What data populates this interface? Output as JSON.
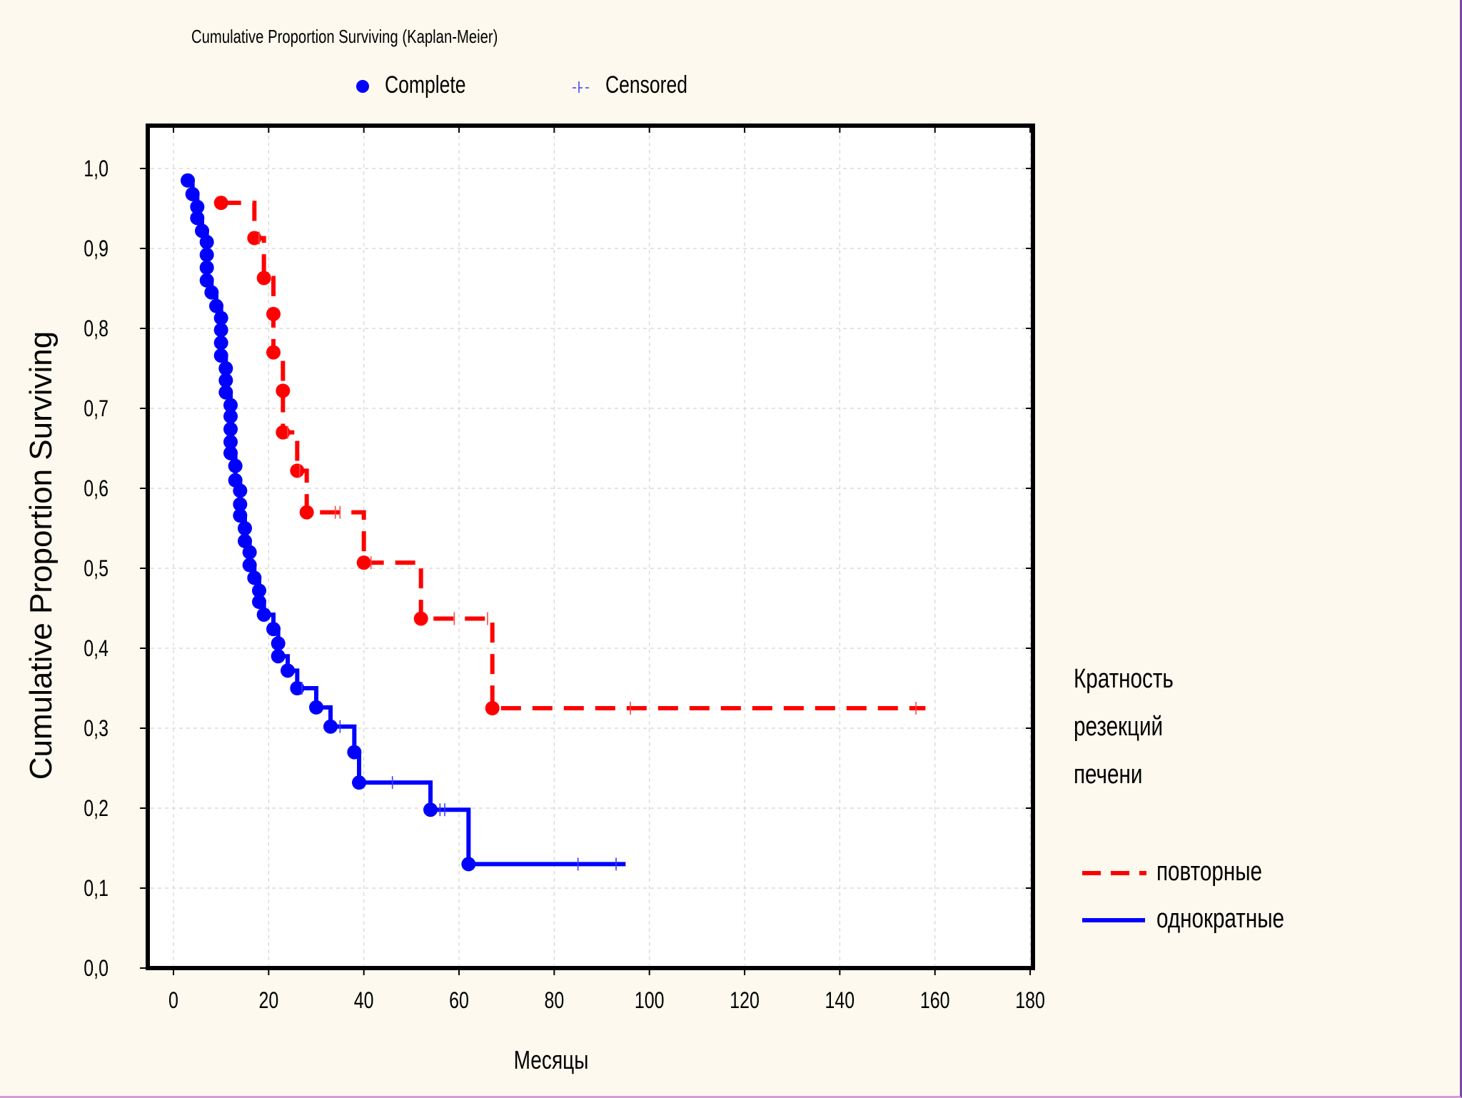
{
  "header": {
    "title": "Cumulative Proportion Surviving (Kaplan-Meier)",
    "complete_label": "Complete",
    "censored_label": "Censored"
  },
  "group_legend": {
    "title_lines": [
      "Кратность",
      "резекций",
      "печени"
    ],
    "items": [
      {
        "label": "повторные",
        "color": "#ff0000",
        "style": "dashed"
      },
      {
        "label": "однократные",
        "color": "#0000ff",
        "style": "solid"
      }
    ]
  },
  "chart_data": {
    "type": "line",
    "subtype": "kaplan-meier step",
    "title": "Cumulative Proportion Surviving (Kaplan-Meier)",
    "xlabel": "Месяцы",
    "ylabel": "Cumulative Proportion Surviving",
    "xlim": [
      -5,
      180
    ],
    "ylim": [
      0,
      1.05
    ],
    "x_ticks": [
      "0",
      "20",
      "40",
      "60",
      "80",
      "100",
      "120",
      "140",
      "160",
      "180"
    ],
    "y_ticks": [
      "0,0",
      "0,1",
      "0,2",
      "0,3",
      "0,4",
      "0,5",
      "0,6",
      "0,7",
      "0,8",
      "0,9",
      "1,0"
    ],
    "grid": true,
    "series": [
      {
        "name": "повторные",
        "color": "#ff0000",
        "style": "dashed",
        "events": [
          {
            "x": 10,
            "y": 0.957
          },
          {
            "x": 17,
            "y": 0.913
          },
          {
            "x": 19,
            "y": 0.863
          },
          {
            "x": 21,
            "y": 0.818
          },
          {
            "x": 21,
            "y": 0.77
          },
          {
            "x": 23,
            "y": 0.722
          },
          {
            "x": 23,
            "y": 0.67
          },
          {
            "x": 26,
            "y": 0.622
          },
          {
            "x": 28,
            "y": 0.57
          },
          {
            "x": 40,
            "y": 0.507
          },
          {
            "x": 52,
            "y": 0.437
          },
          {
            "x": 67,
            "y": 0.325
          }
        ],
        "censored": [
          {
            "x": 18,
            "y": 0.913
          },
          {
            "x": 24,
            "y": 0.67
          },
          {
            "x": 26.5,
            "y": 0.622
          },
          {
            "x": 34,
            "y": 0.57
          },
          {
            "x": 35,
            "y": 0.57
          },
          {
            "x": 41.5,
            "y": 0.507
          },
          {
            "x": 59,
            "y": 0.437
          },
          {
            "x": 66,
            "y": 0.437
          },
          {
            "x": 96,
            "y": 0.325
          },
          {
            "x": 156,
            "y": 0.325
          }
        ],
        "last_x": 158
      },
      {
        "name": "однократные",
        "color": "#0000ff",
        "style": "solid",
        "events": [
          {
            "x": 3,
            "y": 0.985
          },
          {
            "x": 4,
            "y": 0.968
          },
          {
            "x": 5,
            "y": 0.952
          },
          {
            "x": 5,
            "y": 0.938
          },
          {
            "x": 6,
            "y": 0.922
          },
          {
            "x": 7,
            "y": 0.908
          },
          {
            "x": 7,
            "y": 0.892
          },
          {
            "x": 7,
            "y": 0.876
          },
          {
            "x": 7,
            "y": 0.86
          },
          {
            "x": 8,
            "y": 0.845
          },
          {
            "x": 9,
            "y": 0.828
          },
          {
            "x": 10,
            "y": 0.813
          },
          {
            "x": 10,
            "y": 0.798
          },
          {
            "x": 10,
            "y": 0.782
          },
          {
            "x": 10,
            "y": 0.766
          },
          {
            "x": 11,
            "y": 0.75
          },
          {
            "x": 11,
            "y": 0.735
          },
          {
            "x": 11,
            "y": 0.72
          },
          {
            "x": 12,
            "y": 0.704
          },
          {
            "x": 12,
            "y": 0.69
          },
          {
            "x": 12,
            "y": 0.674
          },
          {
            "x": 12,
            "y": 0.658
          },
          {
            "x": 12,
            "y": 0.644
          },
          {
            "x": 13,
            "y": 0.628
          },
          {
            "x": 13,
            "y": 0.61
          },
          {
            "x": 14,
            "y": 0.597
          },
          {
            "x": 14,
            "y": 0.58
          },
          {
            "x": 14,
            "y": 0.566
          },
          {
            "x": 15,
            "y": 0.55
          },
          {
            "x": 15,
            "y": 0.534
          },
          {
            "x": 16,
            "y": 0.52
          },
          {
            "x": 16,
            "y": 0.504
          },
          {
            "x": 17,
            "y": 0.488
          },
          {
            "x": 18,
            "y": 0.472
          },
          {
            "x": 18,
            "y": 0.458
          },
          {
            "x": 19,
            "y": 0.442
          },
          {
            "x": 21,
            "y": 0.424
          },
          {
            "x": 22,
            "y": 0.406
          },
          {
            "x": 22,
            "y": 0.39
          },
          {
            "x": 24,
            "y": 0.372
          },
          {
            "x": 26,
            "y": 0.35
          },
          {
            "x": 30,
            "y": 0.326
          },
          {
            "x": 33,
            "y": 0.302
          },
          {
            "x": 38,
            "y": 0.27
          },
          {
            "x": 39,
            "y": 0.232
          },
          {
            "x": 54,
            "y": 0.198
          },
          {
            "x": 62,
            "y": 0.13
          }
        ],
        "censored": [
          {
            "x": 27,
            "y": 0.35
          },
          {
            "x": 35,
            "y": 0.302
          },
          {
            "x": 46,
            "y": 0.232
          },
          {
            "x": 56,
            "y": 0.198
          },
          {
            "x": 57,
            "y": 0.198
          },
          {
            "x": 85,
            "y": 0.13
          },
          {
            "x": 93,
            "y": 0.13
          }
        ],
        "last_x": 95
      }
    ]
  }
}
